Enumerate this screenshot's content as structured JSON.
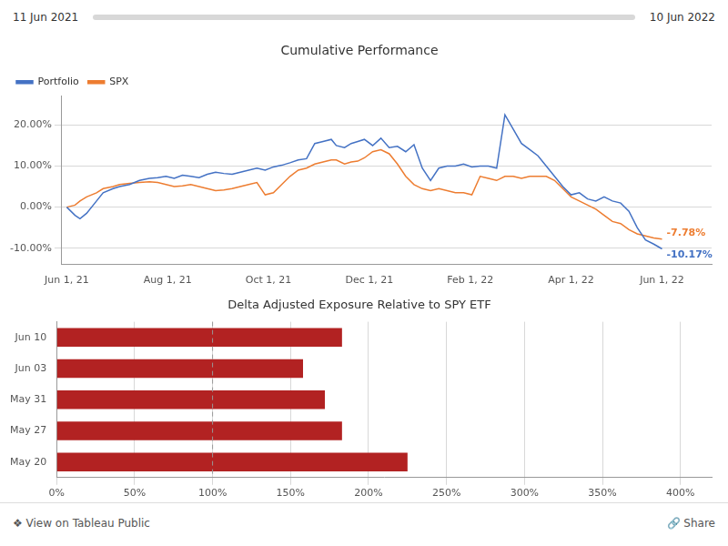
{
  "chart_data": [
    {
      "type": "line",
      "title": "Cumulative Performance",
      "x": [
        0,
        5,
        8,
        12,
        18,
        22,
        28,
        32,
        38,
        44,
        50,
        55,
        60,
        65,
        70,
        75,
        80,
        85,
        90,
        95,
        100,
        105,
        110,
        115,
        120,
        125,
        130,
        135,
        140,
        145,
        150,
        155,
        160,
        163,
        168,
        172,
        176,
        180,
        185,
        190,
        195,
        200,
        205,
        210,
        215,
        220,
        225,
        230,
        235,
        240,
        245,
        250,
        255,
        260,
        265,
        270,
        275,
        280,
        285,
        290,
        295,
        300,
        305,
        310,
        315,
        320,
        325,
        330,
        335,
        340,
        345,
        350,
        355,
        360
      ],
      "series": [
        {
          "name": "Portfolio",
          "color": "#4472c4",
          "values": [
            0.0,
            -2.0,
            -2.8,
            -1.5,
            1.5,
            3.5,
            4.5,
            5.0,
            5.5,
            6.5,
            7.0,
            7.2,
            7.5,
            7.0,
            7.8,
            7.5,
            7.2,
            8.0,
            8.5,
            8.2,
            8.0,
            8.5,
            9.0,
            9.5,
            9.0,
            9.8,
            10.2,
            10.8,
            11.5,
            11.8,
            15.5,
            16.0,
            16.5,
            15.0,
            14.5,
            15.5,
            16.0,
            16.5,
            15.0,
            16.8,
            14.5,
            14.8,
            13.5,
            15.2,
            9.5,
            6.5,
            9.5,
            10.0,
            10.0,
            10.5,
            9.8,
            10.0,
            10.0,
            9.5,
            22.5,
            19.0,
            15.5,
            14.0,
            12.5,
            10.0,
            7.5,
            5.0,
            3.0,
            3.5,
            2.0,
            1.5,
            2.5,
            1.5,
            1.0,
            -1.0,
            -5.0,
            -8.0,
            -9.0,
            -10.17
          ]
        },
        {
          "name": "SPX",
          "color": "#ed7d31",
          "values": [
            0.0,
            0.5,
            1.5,
            2.5,
            3.5,
            4.5,
            5.0,
            5.5,
            5.8,
            6.0,
            6.2,
            6.0,
            5.5,
            5.0,
            5.2,
            5.5,
            5.0,
            4.5,
            4.0,
            4.2,
            4.5,
            5.0,
            5.5,
            6.0,
            3.0,
            3.5,
            5.5,
            7.5,
            9.0,
            9.5,
            10.5,
            11.0,
            11.5,
            11.5,
            10.5,
            11.0,
            11.2,
            12.0,
            13.5,
            14.0,
            13.0,
            10.5,
            7.5,
            5.5,
            4.5,
            4.0,
            4.5,
            4.0,
            3.5,
            3.5,
            3.0,
            7.5,
            7.0,
            6.5,
            7.5,
            7.5,
            7.0,
            7.5,
            7.5,
            7.5,
            6.5,
            4.5,
            2.5,
            1.5,
            0.5,
            -0.5,
            -2.0,
            -3.5,
            -4.0,
            -5.5,
            -6.5,
            -7.0,
            -7.5,
            -7.78
          ]
        }
      ],
      "xlim": [
        -3,
        390
      ],
      "xticks": [
        {
          "value": 0,
          "label": "Jun 1, 21"
        },
        {
          "value": 61,
          "label": "Aug 1, 21"
        },
        {
          "value": 122,
          "label": "Oct 1, 21"
        },
        {
          "value": 183,
          "label": "Dec 1, 21"
        },
        {
          "value": 244,
          "label": "Feb 1, 22"
        },
        {
          "value": 305,
          "label": "Apr 1, 22"
        },
        {
          "value": 360,
          "label": "Jun 1, 22"
        }
      ],
      "ylim": [
        -14,
        27
      ],
      "yticks": [
        {
          "value": -10,
          "label": "-10.00%"
        },
        {
          "value": 0,
          "label": "0.00%"
        },
        {
          "value": 10,
          "label": "10.00%"
        },
        {
          "value": 20,
          "label": "20.00%"
        }
      ],
      "grid": true,
      "legend": "upper left",
      "annotations": [
        {
          "text": "11 Jun 2021"
        },
        {
          "text": "10 Jun 2022"
        },
        {
          "text": "-7.78%",
          "series": "SPX"
        },
        {
          "text": "-10.17%",
          "series": "Portfolio"
        }
      ]
    },
    {
      "type": "bar",
      "orientation": "horizontal",
      "title": "Delta Adjusted Exposure Relative to SPY ETF",
      "categories": [
        "Jun 10",
        "Jun 03",
        "May 31",
        "May 27",
        "May 20"
      ],
      "values": [
        183,
        158,
        172,
        183,
        225
      ],
      "color": "#b22222",
      "xlim": [
        0,
        420
      ],
      "xticks": [
        {
          "value": 0,
          "label": "0%"
        },
        {
          "value": 50,
          "label": "50%"
        },
        {
          "value": 100,
          "label": "100%"
        },
        {
          "value": 150,
          "label": "150%"
        },
        {
          "value": 200,
          "label": "200%"
        },
        {
          "value": 250,
          "label": "250%"
        },
        {
          "value": 300,
          "label": "300%"
        },
        {
          "value": 350,
          "label": "350%"
        },
        {
          "value": 400,
          "label": "400%"
        }
      ],
      "grid": true,
      "reference_line": 100,
      "annotations": [
        {
          "text": "❖ View on Tableau Public"
        },
        {
          "text": "🔗 Share"
        }
      ]
    }
  ]
}
